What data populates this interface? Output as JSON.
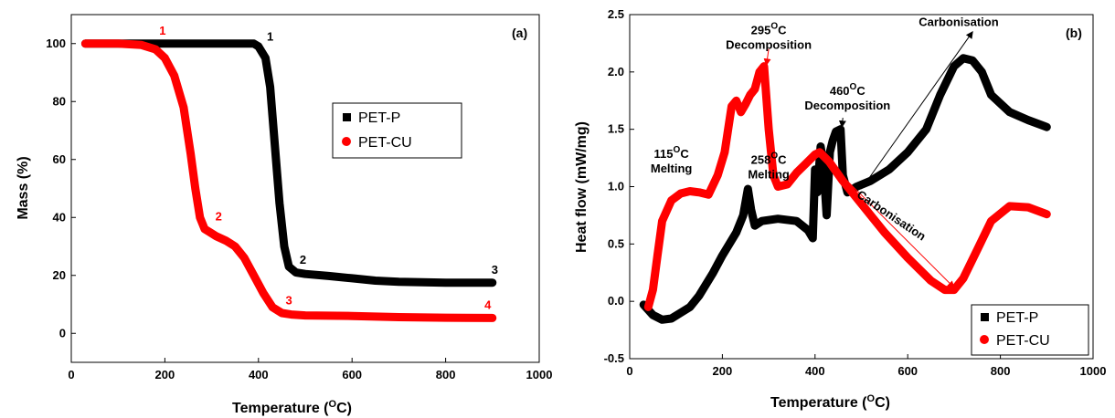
{
  "chart_data": [
    {
      "type": "line",
      "panel": "(a)",
      "xlabel": "Temperature (",
      "xlabel_sup": "O",
      "xlabel_end": "C)",
      "ylabel": "Mass (%)",
      "xlim": [
        0,
        1000
      ],
      "ylim": [
        -10,
        110
      ],
      "xticks": [
        0,
        200,
        400,
        600,
        800,
        1000
      ],
      "yticks": [
        0,
        20,
        40,
        60,
        80,
        100
      ],
      "legend": {
        "placement": "center-right",
        "entries": [
          "PET-P",
          "PET-CU"
        ]
      },
      "series": [
        {
          "name": "PET-P",
          "color": "#000000",
          "x": [
            30,
            100,
            200,
            300,
            390,
            400,
            415,
            425,
            435,
            445,
            455,
            465,
            480,
            500,
            550,
            600,
            650,
            700,
            800,
            900
          ],
          "y": [
            100,
            100,
            100,
            100,
            100,
            99,
            95,
            85,
            65,
            45,
            30,
            23,
            21,
            20.5,
            19.8,
            19,
            18.2,
            17.8,
            17.5,
            17.5
          ]
        },
        {
          "name": "PET-CU",
          "color": "#ff0000",
          "x": [
            30,
            100,
            150,
            180,
            200,
            220,
            240,
            255,
            265,
            275,
            285,
            295,
            310,
            330,
            350,
            370,
            390,
            410,
            430,
            450,
            470,
            500,
            600,
            700,
            800,
            900
          ],
          "y": [
            100,
            100,
            99.5,
            98,
            95,
            89,
            78,
            62,
            50,
            40,
            36,
            35,
            33.5,
            32,
            30,
            26,
            20,
            14,
            9,
            7,
            6.5,
            6.2,
            6,
            5.6,
            5.4,
            5.3
          ]
        }
      ],
      "point_labels": [
        {
          "series": "PET-P",
          "text": "1",
          "x": 425,
          "y": 101
        },
        {
          "series": "PET-P",
          "text": "2",
          "x": 495,
          "y": 24
        },
        {
          "series": "PET-P",
          "text": "3",
          "x": 905,
          "y": 20.5
        },
        {
          "series": "PET-CU",
          "text": "1",
          "x": 195,
          "y": 103
        },
        {
          "series": "PET-CU",
          "text": "2",
          "x": 315,
          "y": 39
        },
        {
          "series": "PET-CU",
          "text": "3",
          "x": 465,
          "y": 10
        },
        {
          "series": "PET-CU",
          "text": "4",
          "x": 890,
          "y": 8.5
        }
      ]
    },
    {
      "type": "line",
      "panel": "(b)",
      "xlabel": "Temperature (",
      "xlabel_sup": "O",
      "xlabel_end": "C)",
      "ylabel": "Heat flow (mW/mg)",
      "xlim": [
        0,
        1000
      ],
      "ylim": [
        -0.5,
        2.5
      ],
      "xticks": [
        0,
        200,
        400,
        600,
        800,
        1000
      ],
      "yticks": [
        -0.5,
        0.0,
        0.5,
        1.0,
        1.5,
        2.0,
        2.5
      ],
      "legend": {
        "placement": "bottom-right",
        "entries": [
          "PET-P",
          "PET-CU"
        ]
      },
      "series": [
        {
          "name": "PET-P",
          "color": "#000000",
          "x": [
            30,
            50,
            70,
            90,
            110,
            130,
            150,
            180,
            200,
            230,
            245,
            255,
            262,
            270,
            285,
            320,
            360,
            385,
            395,
            400,
            405,
            412,
            418,
            425,
            432,
            438,
            445,
            455,
            460,
            470,
            490,
            520,
            560,
            600,
            640,
            670,
            700,
            720,
            740,
            760,
            780,
            820,
            860,
            900
          ],
          "y": [
            -0.03,
            -0.12,
            -0.16,
            -0.15,
            -0.1,
            -0.05,
            0.05,
            0.25,
            0.4,
            0.6,
            0.75,
            0.98,
            0.8,
            0.66,
            0.7,
            0.72,
            0.7,
            0.62,
            0.55,
            1.15,
            0.95,
            1.35,
            1.2,
            0.75,
            1.3,
            1.4,
            1.48,
            1.5,
            1.1,
            0.95,
            1.0,
            1.05,
            1.15,
            1.3,
            1.5,
            1.8,
            2.05,
            2.12,
            2.1,
            2.0,
            1.8,
            1.65,
            1.58,
            1.52
          ]
        },
        {
          "name": "PET-CU",
          "color": "#ff0000",
          "x": [
            40,
            50,
            60,
            70,
            90,
            110,
            130,
            150,
            170,
            190,
            205,
            220,
            230,
            240,
            250,
            260,
            270,
            280,
            290,
            300,
            310,
            320,
            340,
            360,
            380,
            400,
            410,
            430,
            460,
            500,
            550,
            600,
            650,
            680,
            700,
            720,
            750,
            780,
            820,
            860,
            900
          ],
          "y": [
            -0.05,
            0.1,
            0.4,
            0.7,
            0.88,
            0.94,
            0.96,
            0.95,
            0.93,
            1.1,
            1.3,
            1.7,
            1.75,
            1.65,
            1.72,
            1.8,
            1.85,
            2.0,
            2.05,
            1.5,
            1.1,
            1.0,
            1.02,
            1.12,
            1.2,
            1.28,
            1.3,
            1.22,
            1.05,
            0.85,
            0.6,
            0.38,
            0.18,
            0.1,
            0.1,
            0.2,
            0.45,
            0.7,
            0.83,
            0.82,
            0.76
          ]
        }
      ],
      "annotations": [
        {
          "text": "295",
          "sup": "O",
          "tail": "C",
          "line2": "Decomposition",
          "x": 300,
          "y": 2.33
        },
        {
          "text": "460",
          "sup": "O",
          "tail": "C",
          "line2": "Decomposition",
          "x": 470,
          "y": 1.8
        },
        {
          "text": "115",
          "sup": "O",
          "tail": "C",
          "line2": "Melting",
          "x": 90,
          "y": 1.25
        },
        {
          "text": "258",
          "sup": "O",
          "tail": "C",
          "line2": "Melting",
          "x": 300,
          "y": 1.2
        },
        {
          "text": "Carbonisation",
          "x": 710,
          "y": 2.4
        },
        {
          "text": "Carbonisation",
          "x": 560,
          "y": 0.72,
          "rotate": 34
        }
      ],
      "arrows": [
        {
          "from": [
            300,
            2.2
          ],
          "to": [
            295,
            2.06
          ],
          "color": "#ff0000"
        },
        {
          "from": [
            460,
            1.6
          ],
          "to": [
            458,
            1.52
          ],
          "color": "#000000"
        },
        {
          "from": [
            500,
            0.98
          ],
          "to": [
            740,
            2.35
          ],
          "color": "#000000"
        },
        {
          "from": [
            420,
            1.25
          ],
          "to": [
            700,
            0.12
          ],
          "color": "#ff0000"
        }
      ]
    }
  ]
}
